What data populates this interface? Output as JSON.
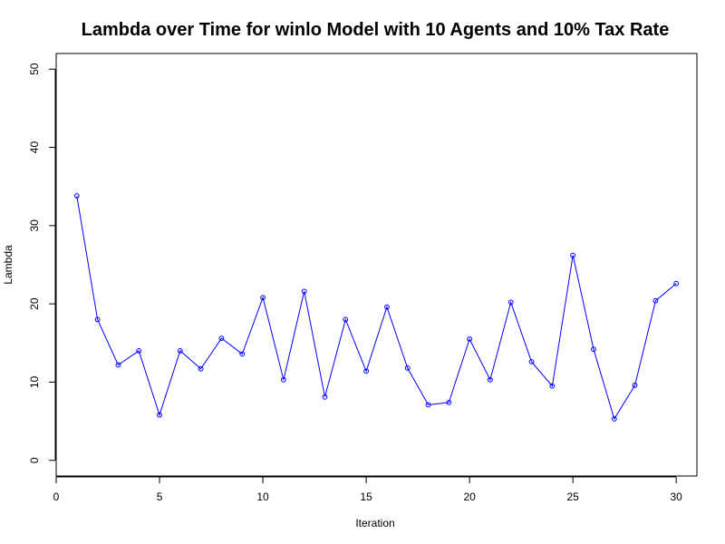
{
  "chart_data": {
    "type": "line",
    "title": "Lambda over Time for winlo Model with 10 Agents and 10% Tax Rate",
    "xlabel": "Iteration",
    "ylabel": "Lambda",
    "xlim": [
      0,
      31
    ],
    "ylim": [
      -2,
      52
    ],
    "x_ticks": [
      0,
      5,
      10,
      15,
      20,
      25,
      30
    ],
    "y_ticks": [
      0,
      10,
      20,
      30,
      40,
      50
    ],
    "grid": false,
    "line_color": "#0000ff",
    "point_color": "#0000ff",
    "x": [
      1,
      2,
      3,
      4,
      5,
      6,
      7,
      8,
      9,
      10,
      11,
      12,
      13,
      14,
      15,
      16,
      17,
      18,
      19,
      20,
      21,
      22,
      23,
      24,
      25,
      26,
      27,
      28,
      29,
      30
    ],
    "values": [
      33.8,
      18.0,
      12.2,
      14.0,
      5.8,
      14.0,
      11.7,
      15.6,
      13.6,
      20.8,
      10.3,
      21.6,
      8.1,
      18.0,
      11.4,
      19.6,
      11.8,
      7.1,
      7.4,
      15.5,
      10.3,
      20.2,
      12.6,
      9.5,
      26.2,
      14.2,
      5.3,
      9.6,
      20.4,
      22.6
    ]
  }
}
